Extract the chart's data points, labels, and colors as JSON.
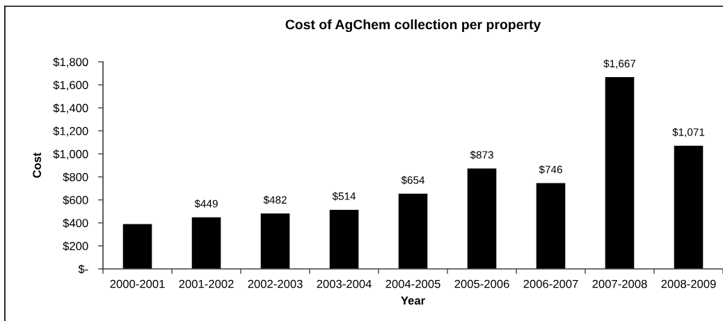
{
  "chart_data": {
    "type": "bar",
    "title": "Cost of AgChem collection per property",
    "xlabel": "Year",
    "ylabel": "Cost",
    "categories": [
      "2000-2001",
      "2001-2002",
      "2002-2003",
      "2003-2004",
      "2004-2005",
      "2005-2006",
      "2006-2007",
      "2007-2008",
      "2008-2009"
    ],
    "values": [
      390,
      449,
      482,
      514,
      654,
      873,
      746,
      1667,
      1071
    ],
    "value_labels": [
      null,
      "$449",
      "$482",
      "$514",
      "$654",
      "$873",
      "$746",
      "$1,667",
      "$1,071"
    ],
    "color": "#000000",
    "ylim": [
      0,
      1800
    ],
    "yticks": [
      {
        "value": 0,
        "label": "$-"
      },
      {
        "value": 200,
        "label": "$200"
      },
      {
        "value": 400,
        "label": "$400"
      },
      {
        "value": 600,
        "label": "$600"
      },
      {
        "value": 800,
        "label": "$800"
      },
      {
        "value": 1000,
        "label": "$1,000"
      },
      {
        "value": 1200,
        "label": "$1,200"
      },
      {
        "value": 1400,
        "label": "$1,400"
      },
      {
        "value": 1600,
        "label": "$1,600"
      },
      {
        "value": 1800,
        "label": "$1,800"
      }
    ],
    "grid": false,
    "legend": false
  }
}
